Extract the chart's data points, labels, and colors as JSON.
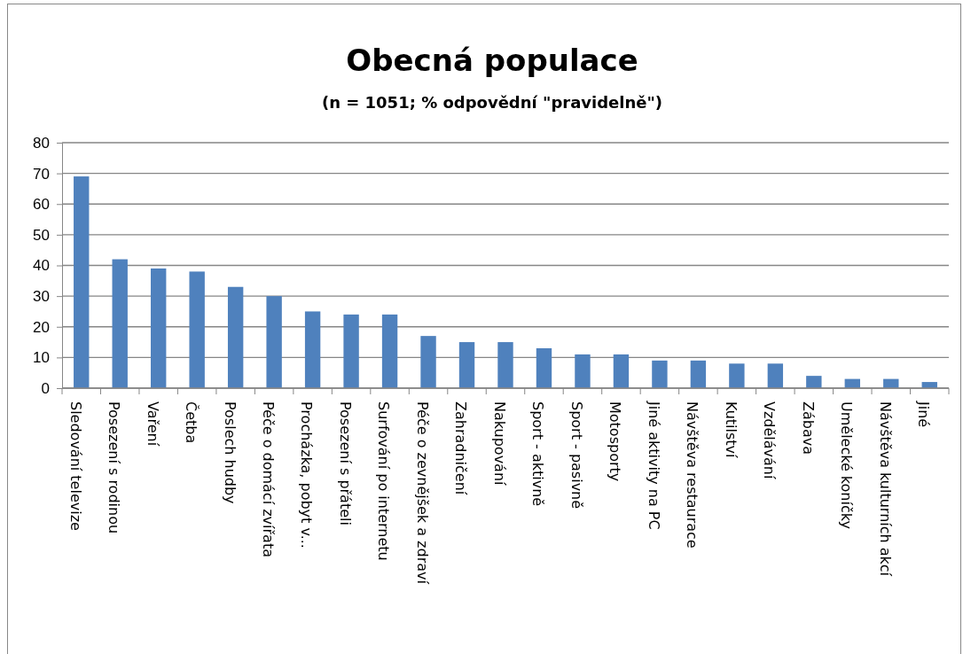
{
  "chart_data": {
    "type": "bar",
    "title": "Obecná populace",
    "subtitle": "(n = 1051; % odpovědní \"pravidelně\")",
    "categories": [
      "Sledování televize",
      "Posezení s rodinou",
      "Vaření",
      "Četba",
      "Poslech hudby",
      "Péče o domácí zvířata",
      "Procházka, pobyt v...",
      "Posezení s přáteli",
      "Surfování po internetu",
      "Péče o zevnějšek a zdraví",
      "Zahradničení",
      "Nakupování",
      "Sport - aktivně",
      "Sport - pasivně",
      "Motosporty",
      "Jiné aktivity na PC",
      "Návštěva restaurace",
      "Kutilství",
      "Vzdělávání",
      "Zábava",
      "Umělecké koníčky",
      "Návštěva kulturních akcí",
      "Jiné"
    ],
    "values": [
      69,
      42,
      39,
      38,
      33,
      30,
      25,
      24,
      24,
      17,
      15,
      15,
      13,
      11,
      11,
      9,
      9,
      8,
      8,
      4,
      3,
      3,
      2
    ],
    "color": "#4f81bd",
    "ylim": [
      0,
      80
    ],
    "yticks": [
      0,
      10,
      20,
      30,
      40,
      50,
      60,
      70,
      80
    ],
    "grid": "y"
  }
}
